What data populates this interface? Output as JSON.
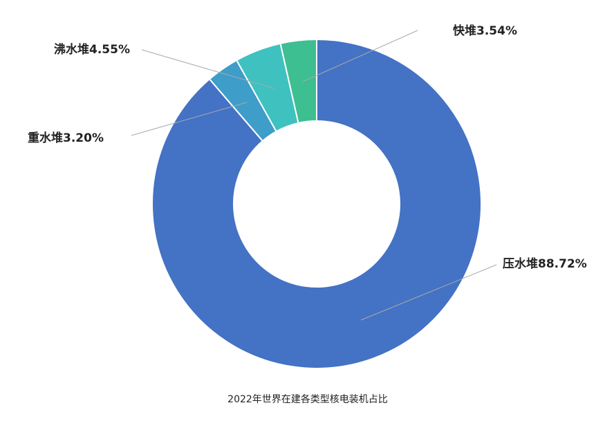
{
  "chart_data": {
    "type": "donut",
    "title": "2022年世界在建各类型核电装机占比",
    "values": [
      88.72,
      3.2,
      4.55,
      3.54
    ],
    "value_labels": [
      "压水堆88.72%",
      "重水堆3.20%",
      "沸水堆4.55%",
      "快堆3.54%"
    ],
    "colors": [
      "#4472c4",
      "#3e9dc9",
      "#3fc1bf",
      "#3dbf91"
    ]
  }
}
